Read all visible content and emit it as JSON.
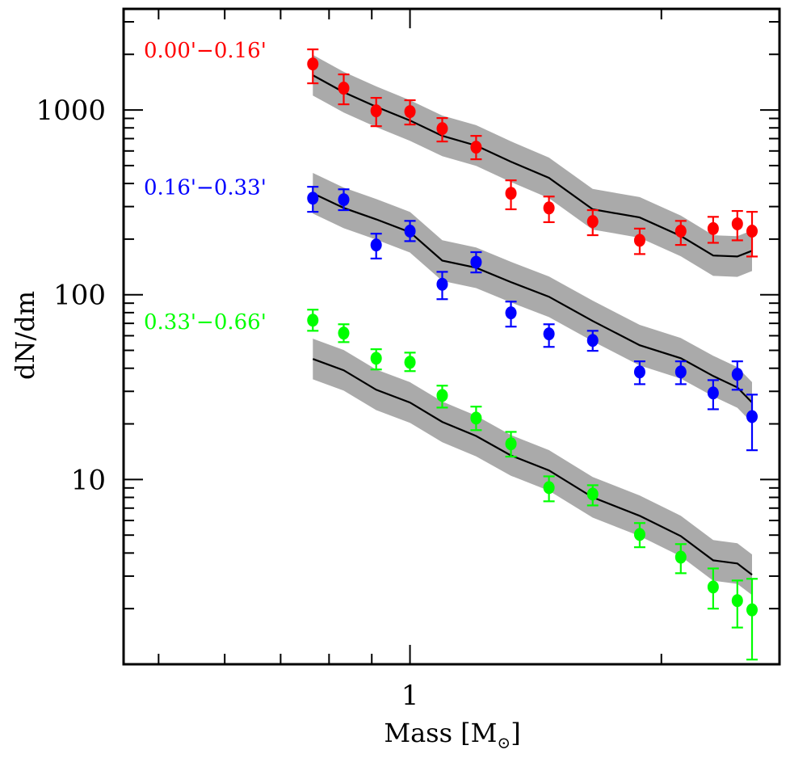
{
  "chart_data": {
    "type": "scatter",
    "title": "",
    "xlabel": "Mass [M",
    "xlabel_sub": "⊙",
    "xlabel_close": "]",
    "ylabel": "dN/dm",
    "xscale": "log",
    "yscale": "log",
    "xlim": [
      0.454,
      2.77
    ],
    "ylim": [
      1.0,
      3524
    ],
    "grid": false,
    "x_ticks": [
      {
        "value": 1,
        "label": "1"
      }
    ],
    "x_minor_ticks": [
      0.5,
      0.6,
      0.7,
      0.8,
      0.9,
      2
    ],
    "y_ticks": [
      {
        "value": 10,
        "label": "10"
      },
      {
        "value": 100,
        "label": "100"
      },
      {
        "value": 1000,
        "label": "1000"
      }
    ],
    "y_minor_ticks": [
      2,
      3,
      4,
      5,
      6,
      7,
      8,
      9,
      20,
      30,
      40,
      50,
      60,
      70,
      80,
      90,
      200,
      300,
      400,
      500,
      600,
      700,
      800,
      900,
      2000,
      3000
    ],
    "x": [
      0.765,
      0.833,
      0.911,
      1.0,
      1.093,
      1.2,
      1.321,
      1.467,
      1.655,
      1.884,
      2.11,
      2.307,
      2.466,
      2.568
    ],
    "series": [
      {
        "name": "0.00'−0.16'",
        "color": "#ff0000",
        "values": [
          1775,
          1313,
          990,
          980,
          793,
          629,
          354,
          295,
          249,
          197,
          221,
          228,
          242,
          221
        ],
        "err_low": [
          1394,
          1073,
          817,
          834,
          675,
          541,
          290,
          247,
          210,
          166,
          186,
          191,
          197,
          161
        ],
        "err_high": [
          2128,
          1558,
          1163,
          1129,
          904,
          724,
          416,
          340,
          287,
          228,
          251,
          264,
          284,
          281
        ],
        "model": [
          1542,
          1248,
          1041,
          877,
          724,
          642,
          525,
          429,
          290,
          262,
          208,
          163,
          161,
          173
        ],
        "model_band_dex": 0.11
      },
      {
        "name": "0.16'−0.33'",
        "color": "#0000ff",
        "values": [
          333,
          327,
          186,
          221,
          114,
          150,
          79.8,
          61.4,
          56.6,
          38.2,
          38.2,
          29.4,
          37.1,
          21.9
        ],
        "err_low": [
          281,
          287,
          157,
          195,
          94.6,
          132,
          67.2,
          52.2,
          49.7,
          32.8,
          32.8,
          24.0,
          30.6,
          14.4
        ],
        "err_high": [
          384,
          372,
          214,
          251,
          133,
          170,
          91.8,
          69.2,
          63.8,
          43.6,
          43.6,
          34.5,
          43.6,
          28.8
        ],
        "model": [
          354,
          295,
          256,
          218,
          153,
          140,
          117,
          97.5,
          72.1,
          53.3,
          45.3,
          36.3,
          31.5,
          26.1
        ],
        "model_band_dex": 0.11
      },
      {
        "name": "0.33'−0.66'",
        "color": "#00ff00",
        "values": [
          72.8,
          62.0,
          45.3,
          43.1,
          28.5,
          21.5,
          15.6,
          9.04,
          8.34,
          5.04,
          3.8,
          2.62,
          2.21,
          1.97
        ],
        "err_low": [
          63.8,
          55.4,
          39.4,
          38.6,
          24.5,
          18.5,
          13.3,
          7.62,
          7.24,
          4.3,
          3.11,
          2.0,
          1.58,
          1.06
        ],
        "err_high": [
          83.0,
          69.2,
          50.7,
          48.6,
          32.2,
          24.8,
          18.1,
          10.4,
          9.31,
          5.81,
          4.47,
          3.3,
          2.84,
          2.9
        ],
        "model": [
          44.9,
          39.0,
          30.6,
          26.1,
          20.5,
          17.2,
          13.5,
          11.2,
          8.01,
          6.36,
          4.94,
          3.65,
          3.51,
          3.05
        ],
        "model_band_dex": 0.11
      }
    ],
    "model_line_color": "#000000",
    "model_band_color": "#aaaaaa",
    "legend_placement": "left, beside each series"
  }
}
